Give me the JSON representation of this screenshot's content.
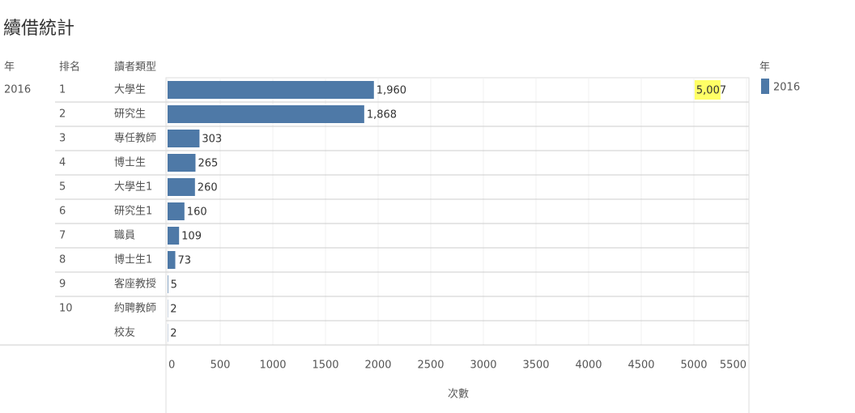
{
  "chart_data": {
    "type": "bar",
    "title": "續借統計",
    "column_headers": [
      "年",
      "排名",
      "讀者類型"
    ],
    "row_year": "2016",
    "ranks": [
      1,
      2,
      3,
      4,
      5,
      6,
      7,
      8,
      9,
      10,
      null
    ],
    "categories": [
      "大學生",
      "研究生",
      "專任教師",
      "博士生",
      "大學生1",
      "研究生1",
      "職員",
      "博士生1",
      "客座教授",
      "約聘教師",
      "校友"
    ],
    "series": [
      {
        "name": "2016",
        "color": "#4e79a7",
        "values": [
          1960,
          1868,
          303,
          265,
          260,
          160,
          109,
          73,
          5,
          2,
          2
        ],
        "value_labels": [
          "1,960",
          "1,868",
          "303",
          "265",
          "260",
          "160",
          "109",
          "73",
          "5",
          "2",
          "2"
        ]
      }
    ],
    "total": 5007,
    "total_label": "5,007",
    "xlim": [
      0,
      5500
    ],
    "xticks": [
      0,
      500,
      1000,
      1500,
      2000,
      2500,
      3000,
      3500,
      4000,
      4500,
      5000,
      5500
    ],
    "xlabel": "次數",
    "legend_title": "年",
    "grid": true
  }
}
